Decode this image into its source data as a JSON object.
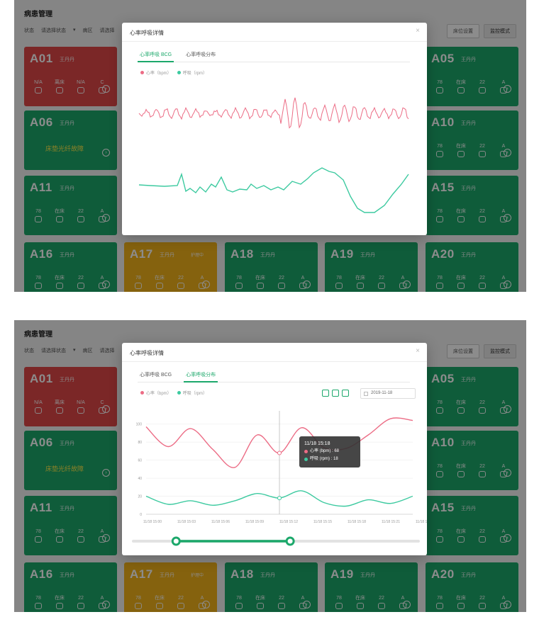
{
  "app_title": "病患管理",
  "filters": [
    "状态",
    "请选择状态",
    "▾",
    "病区",
    "请选择"
  ],
  "top_buttons": [
    "床位设置",
    "监控模式"
  ],
  "fault_text": "床垫光纤故障",
  "card_name": "王丹丹",
  "card_tag": "护理中",
  "cards": [
    {
      "id": "A01",
      "color": "red",
      "stats": [
        {
          "value": "N/A"
        },
        {
          "value": "离床"
        },
        {
          "value": "N/A"
        },
        {
          "value": "C"
        }
      ]
    },
    {
      "id": "A05",
      "color": "green",
      "stats": [
        {
          "value": "78"
        },
        {
          "value": "在床"
        },
        {
          "value": "22"
        },
        {
          "value": "A"
        }
      ]
    },
    {
      "id": "A06",
      "color": "green",
      "fault": true
    },
    {
      "id": "A10",
      "color": "green",
      "stats": [
        {
          "value": "78"
        },
        {
          "value": "在床"
        },
        {
          "value": "22"
        },
        {
          "value": "A"
        }
      ]
    },
    {
      "id": "A11",
      "color": "green",
      "stats": [
        {
          "value": "78"
        },
        {
          "value": "在床"
        },
        {
          "value": "22"
        },
        {
          "value": "A"
        }
      ]
    },
    {
      "id": "A15",
      "color": "green",
      "stats": [
        {
          "value": "78"
        },
        {
          "value": "在床"
        },
        {
          "value": "22"
        },
        {
          "value": "A"
        }
      ]
    },
    {
      "id": "A16",
      "color": "green",
      "stats": [
        {
          "value": "78"
        },
        {
          "value": "在床"
        },
        {
          "value": "22"
        },
        {
          "value": "A"
        }
      ]
    },
    {
      "id": "A17",
      "color": "yellow",
      "tag": true,
      "stats": [
        {
          "value": "78"
        },
        {
          "value": "在床"
        },
        {
          "value": "22"
        },
        {
          "value": "A"
        }
      ]
    },
    {
      "id": "A18",
      "color": "green",
      "stats": [
        {
          "value": "78"
        },
        {
          "value": "在床"
        },
        {
          "value": "22"
        },
        {
          "value": "A"
        }
      ]
    },
    {
      "id": "A19",
      "color": "green",
      "stats": [
        {
          "value": "78"
        },
        {
          "value": "在床"
        },
        {
          "value": "22"
        },
        {
          "value": "A"
        }
      ]
    },
    {
      "id": "A20",
      "color": "green",
      "stats": [
        {
          "value": "78"
        },
        {
          "value": "在床"
        },
        {
          "value": "22"
        },
        {
          "value": "A"
        }
      ]
    }
  ],
  "modal": {
    "title": "心率呼吸详情",
    "close": "×",
    "tabs": [
      "心率呼吸 BCG",
      "心率呼吸分布"
    ],
    "legend": [
      "心率（bpm）",
      "呼吸（rpm）"
    ]
  },
  "screen1": {
    "active_tab": 0
  },
  "screen2": {
    "active_tab": 1,
    "date": "2019-11-18",
    "tooltip": {
      "time": "11/18 15:18",
      "hr_label": "心率 (bpm) : 68",
      "rr_label": "呼吸 (rpm) : 18"
    }
  },
  "chart_data": [
    {
      "type": "line",
      "series": [
        {
          "name": "心率（bpm）",
          "color": "#ec6c85"
        },
        {
          "name": "呼吸（rpm）",
          "color": "#3dcaa0"
        }
      ]
    },
    {
      "type": "line",
      "ylim": [
        0,
        110
      ],
      "yticks": [
        "0",
        "20",
        "40",
        "60",
        "80",
        "100"
      ],
      "categories": [
        "11/18 15:00",
        "11/18 15:03",
        "11/18 15:06",
        "11/18 15:09",
        "11/18 15:12",
        "11/18 15:15",
        "11/18 15:18",
        "11/18 15:21",
        "11/18 15:24",
        "11/18 15:27",
        "11/18 15:30",
        "11/18 15:33",
        "11/18 15:36"
      ],
      "xticks": [
        "11/18 15:00",
        "11/18 15:03",
        "11/18 15:06",
        "11/18 15:09",
        "11/18 15:12",
        "11/18 15:15",
        "11/18 15:18",
        "11/18 15:21",
        "11/18 15:24"
      ],
      "series": [
        {
          "name": "心率（bpm）",
          "color": "#ec6c85",
          "values": [
            97,
            75,
            95,
            72,
            52,
            88,
            68,
            96,
            74,
            73,
            88,
            106,
            104
          ]
        },
        {
          "name": "呼吸（rpm）",
          "color": "#3dcaa0",
          "values": [
            20,
            11,
            15,
            10,
            15,
            23,
            18,
            26,
            13,
            9,
            16,
            12,
            20
          ]
        }
      ],
      "tooltip_index": 6,
      "zoom_range": [
        0.15,
        0.55
      ]
    }
  ]
}
